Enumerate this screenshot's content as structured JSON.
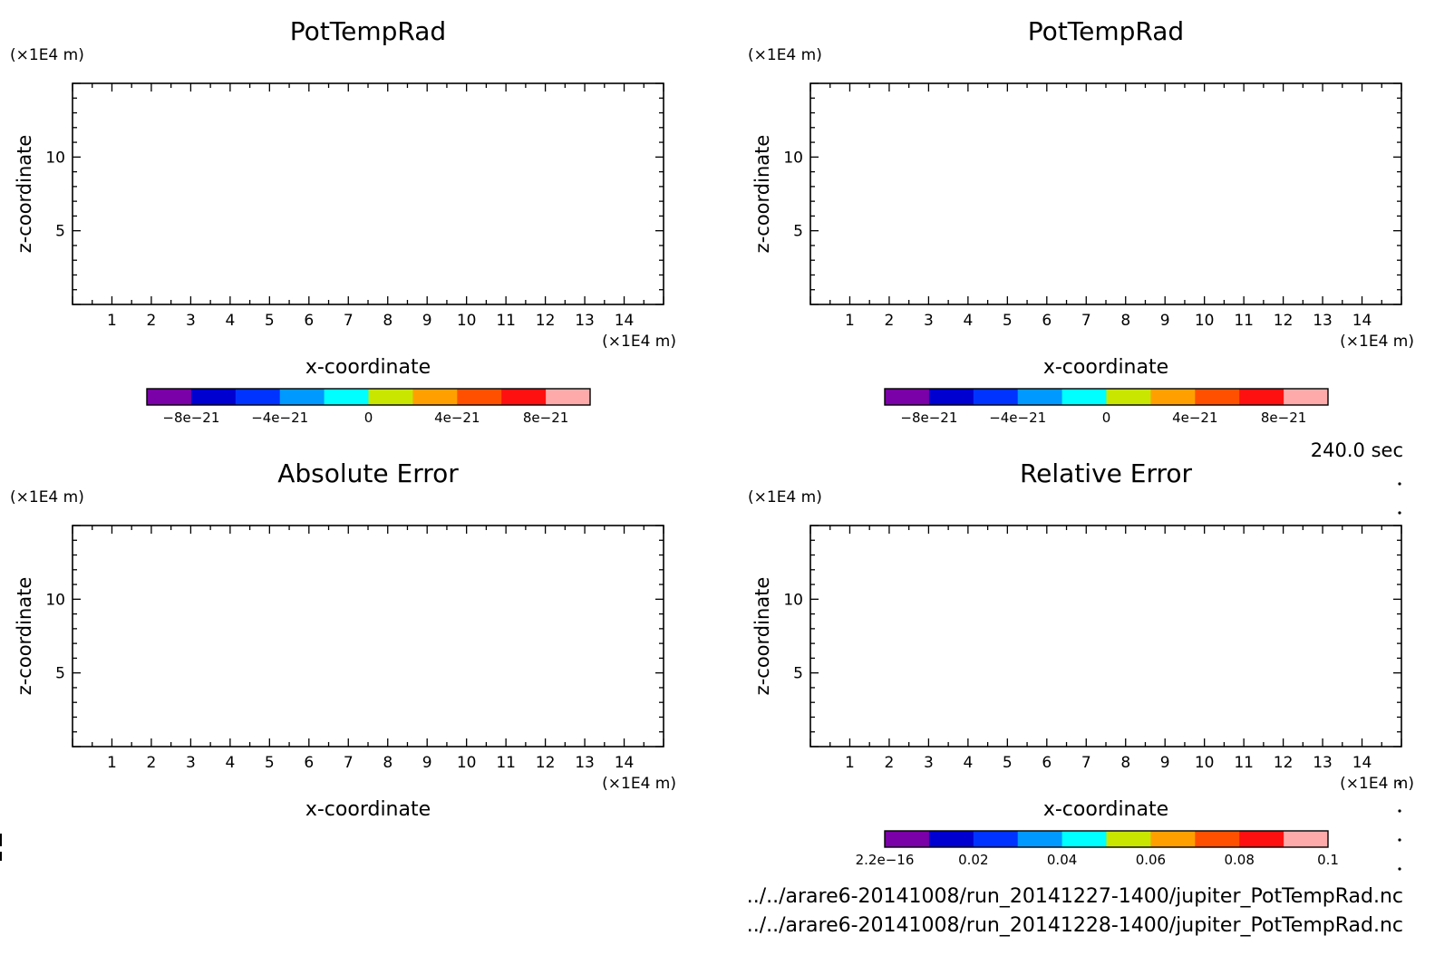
{
  "time_label": "240.0 sec",
  "files": [
    "../../arare6-20141008/run_20141227-1400/jupiter_PotTempRad.nc",
    "../../arare6-20141008/run_20141228-1400/jupiter_PotTempRad.nc"
  ],
  "chart_data": [
    {
      "type": "heatmap",
      "title": "PotTempRad",
      "xlabel": "x-coordinate",
      "ylabel": "z-coordinate",
      "x_unit": "(×1E4 m)",
      "y_unit": "(×1E4 m)",
      "xlim": [
        0,
        15
      ],
      "ylim": [
        0,
        15
      ],
      "x_ticks": [
        1,
        2,
        3,
        4,
        5,
        6,
        7,
        8,
        9,
        10,
        11,
        12,
        13,
        14
      ],
      "y_ticks": [
        5,
        10
      ],
      "values": [],
      "colorbar": {
        "colors": [
          "#7a00a8",
          "#0000d0",
          "#0033ff",
          "#0099ff",
          "#00ffff",
          "#c8e600",
          "#ffa000",
          "#ff5000",
          "#ff1010",
          "#ffaaaa"
        ],
        "labels": [
          "−8e−21",
          "−4e−21",
          "0",
          "4e−21",
          "8e−21"
        ],
        "label_boundaries": [
          1,
          3,
          5,
          7,
          9
        ]
      }
    },
    {
      "type": "heatmap",
      "title": "PotTempRad",
      "xlabel": "x-coordinate",
      "ylabel": "z-coordinate",
      "x_unit": "(×1E4 m)",
      "y_unit": "(×1E4 m)",
      "xlim": [
        0,
        15
      ],
      "ylim": [
        0,
        15
      ],
      "x_ticks": [
        1,
        2,
        3,
        4,
        5,
        6,
        7,
        8,
        9,
        10,
        11,
        12,
        13,
        14
      ],
      "y_ticks": [
        5,
        10
      ],
      "values": [],
      "colorbar": {
        "colors": [
          "#7a00a8",
          "#0000d0",
          "#0033ff",
          "#0099ff",
          "#00ffff",
          "#c8e600",
          "#ffa000",
          "#ff5000",
          "#ff1010",
          "#ffaaaa"
        ],
        "labels": [
          "−8e−21",
          "−4e−21",
          "0",
          "4e−21",
          "8e−21"
        ],
        "label_boundaries": [
          1,
          3,
          5,
          7,
          9
        ]
      }
    },
    {
      "type": "heatmap",
      "title": "Absolute Error",
      "xlabel": "x-coordinate",
      "ylabel": "z-coordinate",
      "x_unit": "(×1E4 m)",
      "y_unit": "(×1E4 m)",
      "xlim": [
        0,
        15
      ],
      "ylim": [
        0,
        15
      ],
      "x_ticks": [
        1,
        2,
        3,
        4,
        5,
        6,
        7,
        8,
        9,
        10,
        11,
        12,
        13,
        14
      ],
      "y_ticks": [
        5,
        10
      ],
      "values": []
    },
    {
      "type": "heatmap",
      "title": "Relative Error",
      "xlabel": "x-coordinate",
      "ylabel": "z-coordinate",
      "x_unit": "(×1E4 m)",
      "y_unit": "(×1E4 m)",
      "xlim": [
        0,
        15
      ],
      "ylim": [
        0,
        15
      ],
      "x_ticks": [
        1,
        2,
        3,
        4,
        5,
        6,
        7,
        8,
        9,
        10,
        11,
        12,
        13,
        14
      ],
      "y_ticks": [
        5,
        10
      ],
      "values": [],
      "colorbar": {
        "colors": [
          "#7a00a8",
          "#0000d0",
          "#0033ff",
          "#0099ff",
          "#00ffff",
          "#c8e600",
          "#ffa000",
          "#ff5000",
          "#ff1010",
          "#ffaaaa"
        ],
        "labels": [
          "2.2e−16",
          "0.02",
          "0.04",
          "0.06",
          "0.08",
          "0.1"
        ],
        "label_boundaries": [
          0,
          2,
          4,
          6,
          8,
          10
        ]
      }
    }
  ]
}
